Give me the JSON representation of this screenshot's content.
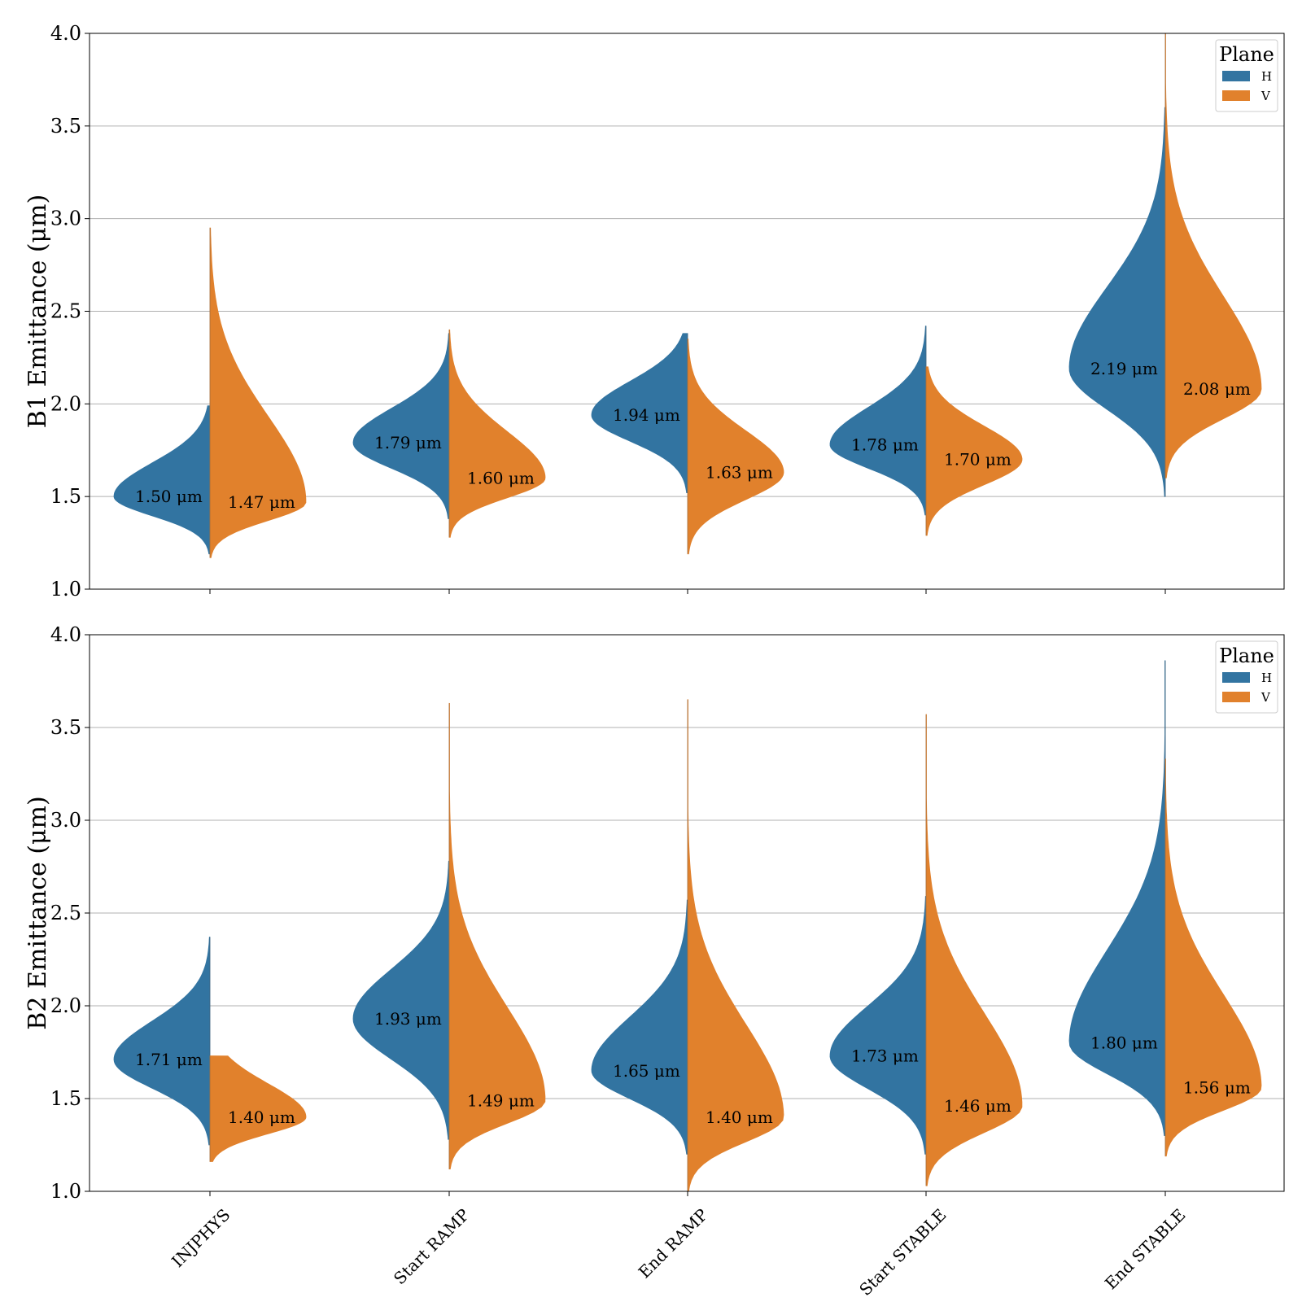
{
  "chart_data": [
    {
      "type": "violin",
      "split": true,
      "ylabel": "B1 Emittance (μm)",
      "ylim": [
        1.0,
        4.0
      ],
      "yticks": [
        "1.0",
        "1.5",
        "2.0",
        "2.5",
        "3.0",
        "3.5",
        "4.0"
      ],
      "grid": "y",
      "categories": [
        "INJPHYS",
        "Start RAMP",
        "End RAMP",
        "Start STABLE",
        "End STABLE"
      ],
      "legend": {
        "title": "Plane",
        "position": "top-right",
        "entries": [
          "H",
          "V"
        ]
      },
      "series": [
        {
          "name": "H",
          "color": "#3274a1",
          "medians": [
            1.5,
            1.79,
            1.94,
            1.78,
            2.19
          ],
          "labels": [
            "1.50 μm",
            "1.79 μm",
            "1.94 μm",
            "1.78 μm",
            "2.19 μm"
          ],
          "ranges": [
            [
              1.19,
              1.99
            ],
            [
              1.38,
              2.38
            ],
            [
              1.52,
              2.38
            ],
            [
              1.4,
              2.42
            ],
            [
              1.5,
              3.6
            ]
          ]
        },
        {
          "name": "V",
          "color": "#e1812c",
          "medians": [
            1.47,
            1.6,
            1.63,
            1.7,
            2.08
          ],
          "labels": [
            "1.47 μm",
            "1.60 μm",
            "1.63 μm",
            "1.70 μm",
            "2.08 μm"
          ],
          "ranges": [
            [
              1.17,
              2.95
            ],
            [
              1.28,
              2.4
            ],
            [
              1.19,
              2.35
            ],
            [
              1.29,
              2.2
            ],
            [
              1.6,
              4.0
            ]
          ]
        }
      ]
    },
    {
      "type": "violin",
      "split": true,
      "ylabel": "B2 Emittance (μm)",
      "ylim": [
        1.0,
        4.0
      ],
      "yticks": [
        "1.0",
        "1.5",
        "2.0",
        "2.5",
        "3.0",
        "3.5",
        "4.0"
      ],
      "grid": "y",
      "categories": [
        "INJPHYS",
        "Start RAMP",
        "End RAMP",
        "Start STABLE",
        "End STABLE"
      ],
      "legend": {
        "title": "Plane",
        "position": "top-right",
        "entries": [
          "H",
          "V"
        ]
      },
      "series": [
        {
          "name": "H",
          "color": "#3274a1",
          "medians": [
            1.71,
            1.93,
            1.65,
            1.73,
            1.8
          ],
          "labels": [
            "1.71 μm",
            "1.93 μm",
            "1.65 μm",
            "1.73 μm",
            "1.80 μm"
          ],
          "ranges": [
            [
              1.25,
              2.37
            ],
            [
              1.28,
              2.78
            ],
            [
              1.2,
              2.57
            ],
            [
              1.2,
              2.59
            ],
            [
              1.3,
              3.86
            ]
          ]
        },
        {
          "name": "V",
          "color": "#e1812c",
          "medians": [
            1.4,
            1.49,
            1.4,
            1.46,
            1.56
          ],
          "labels": [
            "1.40 μm",
            "1.49 μm",
            "1.40 μm",
            "1.46 μm",
            "1.56 μm"
          ],
          "ranges": [
            [
              1.16,
              1.73
            ],
            [
              1.12,
              3.63
            ],
            [
              1.0,
              3.65
            ],
            [
              1.03,
              3.57
            ],
            [
              1.19,
              3.33
            ]
          ]
        }
      ]
    }
  ]
}
